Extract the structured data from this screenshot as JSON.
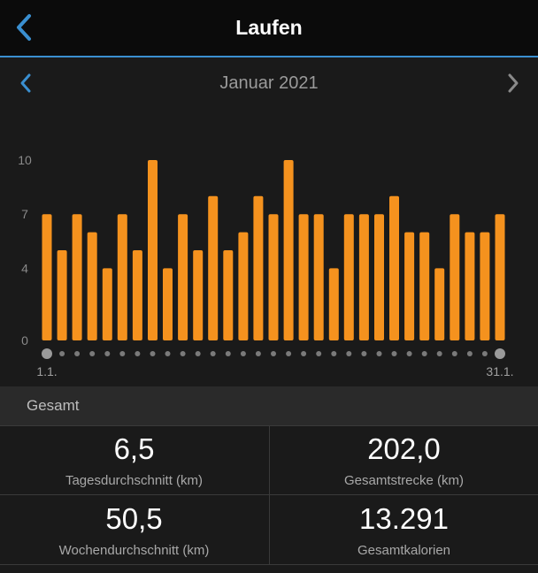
{
  "header": {
    "title": "Laufen",
    "back_icon": "chevron-left-icon"
  },
  "period": {
    "label": "Januar 2021",
    "prev_icon": "chevron-left-icon",
    "next_icon": "chevron-right-icon"
  },
  "chart_data": {
    "type": "bar",
    "ylim": [
      0,
      10
    ],
    "yticks": [
      "10",
      "7",
      "4",
      "0"
    ],
    "ytick_values": [
      10,
      7,
      4,
      0
    ],
    "x_start_label": "1.1.",
    "x_end_label": "31.1.",
    "values": [
      7,
      5,
      7,
      6,
      4,
      7,
      5,
      10,
      4,
      7,
      5,
      8,
      5,
      6,
      8,
      7,
      10,
      7,
      7,
      4,
      7,
      7,
      7,
      8,
      6,
      6,
      4,
      7,
      6,
      6,
      7
    ],
    "bar_color": "#f5921e",
    "grid": false
  },
  "summary": {
    "title": "Gesamt",
    "stats": [
      {
        "value": "6,5",
        "label": "Tagesdurchschnitt (km)"
      },
      {
        "value": "202,0",
        "label": "Gesamtstrecke (km)"
      },
      {
        "value": "50,5",
        "label": "Wochendurchschnitt (km)"
      },
      {
        "value": "13.291",
        "label": "Gesamtkalorien"
      }
    ]
  },
  "colors": {
    "accent": "#3a8fd0",
    "bar": "#f5921e",
    "background": "#1a1a1a"
  }
}
